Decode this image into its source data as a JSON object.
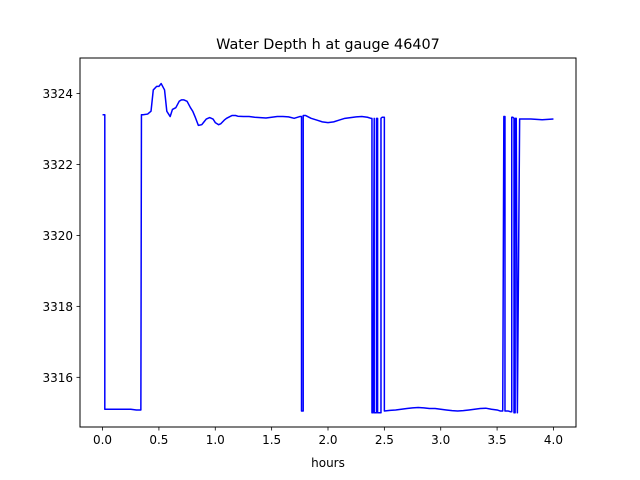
{
  "chart_data": {
    "type": "line",
    "title": "Water Depth h at gauge 46407",
    "xlabel": "hours",
    "ylabel": "",
    "xlim": [
      -0.2,
      4.2
    ],
    "ylim": [
      3314.6,
      3325.0
    ],
    "xticks": [
      0.0,
      0.5,
      1.0,
      1.5,
      2.0,
      2.5,
      3.0,
      3.5,
      4.0
    ],
    "xtick_labels": [
      "0.0",
      "0.5",
      "1.0",
      "1.5",
      "2.0",
      "2.5",
      "3.0",
      "3.5",
      "4.0"
    ],
    "yticks": [
      3316,
      3318,
      3320,
      3322,
      3324
    ],
    "ytick_labels": [
      "3316",
      "3318",
      "3320",
      "3322",
      "3324"
    ],
    "grid": false,
    "colors": {
      "series": "#0000ff"
    },
    "series": [
      {
        "x": [
          0.0,
          0.02,
          0.02,
          0.05,
          0.1,
          0.15,
          0.2,
          0.25,
          0.3,
          0.34,
          0.345,
          0.36,
          0.4,
          0.43,
          0.45,
          0.48,
          0.5,
          0.52,
          0.55,
          0.57,
          0.6,
          0.62,
          0.65,
          0.68,
          0.7,
          0.72,
          0.75,
          0.78,
          0.8,
          0.82,
          0.85,
          0.88,
          0.9,
          0.92,
          0.95,
          0.98,
          1.0,
          1.03,
          1.05,
          1.08,
          1.1,
          1.13,
          1.15,
          1.18,
          1.2,
          1.25,
          1.3,
          1.35,
          1.4,
          1.45,
          1.5,
          1.55,
          1.6,
          1.65,
          1.7,
          1.75,
          1.765,
          1.765,
          1.78,
          1.78,
          1.8,
          1.85,
          1.9,
          1.95,
          2.0,
          2.05,
          2.1,
          2.15,
          2.2,
          2.25,
          2.3,
          2.35,
          2.38,
          2.39,
          2.39,
          2.4,
          2.41,
          2.41,
          2.43,
          2.43,
          2.44,
          2.44,
          2.47,
          2.47,
          2.48,
          2.49,
          2.5,
          2.5,
          2.55,
          2.6,
          2.65,
          2.7,
          2.75,
          2.8,
          2.85,
          2.9,
          2.95,
          3.0,
          3.05,
          3.1,
          3.15,
          3.2,
          3.25,
          3.3,
          3.35,
          3.4,
          3.45,
          3.5,
          3.53,
          3.55,
          3.56,
          3.57,
          3.57,
          3.6,
          3.62,
          3.63,
          3.63,
          3.64,
          3.65,
          3.65,
          3.66,
          3.66,
          3.67,
          3.68,
          3.68,
          3.7,
          3.75,
          3.8,
          3.85,
          3.9,
          3.95,
          4.0
        ],
        "y": [
          3323.4,
          3323.4,
          3315.1,
          3315.1,
          3315.1,
          3315.1,
          3315.1,
          3315.1,
          3315.08,
          3315.08,
          3323.4,
          3323.4,
          3323.42,
          3323.5,
          3324.1,
          3324.2,
          3324.2,
          3324.28,
          3324.1,
          3323.5,
          3323.35,
          3323.55,
          3323.6,
          3323.78,
          3323.82,
          3323.82,
          3323.78,
          3323.6,
          3323.5,
          3323.35,
          3323.1,
          3323.12,
          3323.2,
          3323.28,
          3323.32,
          3323.28,
          3323.18,
          3323.12,
          3323.15,
          3323.25,
          3323.3,
          3323.35,
          3323.38,
          3323.38,
          3323.36,
          3323.35,
          3323.35,
          3323.33,
          3323.32,
          3323.31,
          3323.33,
          3323.35,
          3323.35,
          3323.34,
          3323.3,
          3323.35,
          3323.35,
          3315.05,
          3315.05,
          3323.38,
          3323.38,
          3323.3,
          3323.25,
          3323.2,
          3323.18,
          3323.2,
          3323.25,
          3323.3,
          3323.32,
          3323.34,
          3323.35,
          3323.33,
          3323.3,
          3323.3,
          3315.0,
          3315.0,
          3323.3,
          3315.0,
          3315.0,
          3323.3,
          3323.3,
          3315.0,
          3315.0,
          3323.3,
          3323.33,
          3323.33,
          3323.33,
          3315.05,
          3315.07,
          3315.08,
          3315.1,
          3315.12,
          3315.14,
          3315.15,
          3315.14,
          3315.12,
          3315.12,
          3315.1,
          3315.08,
          3315.06,
          3315.05,
          3315.06,
          3315.08,
          3315.1,
          3315.12,
          3315.13,
          3315.1,
          3315.08,
          3315.05,
          3315.05,
          3323.35,
          3323.35,
          3315.05,
          3315.05,
          3315.03,
          3315.03,
          3323.33,
          3323.33,
          3323.3,
          3315.0,
          3315.0,
          3323.3,
          3323.3,
          3315.0,
          3315.0,
          3323.28,
          3323.28,
          3323.28,
          3323.27,
          3323.26,
          3323.27,
          3323.28
        ]
      }
    ]
  }
}
